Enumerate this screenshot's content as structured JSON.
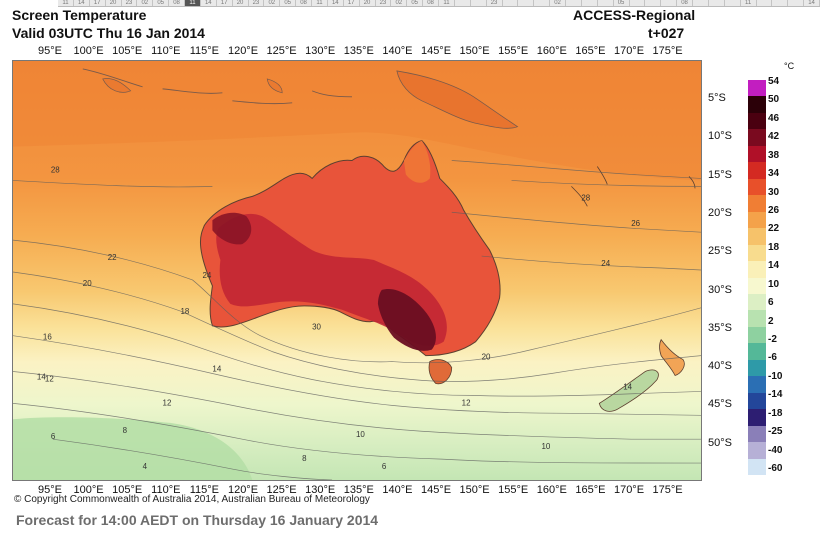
{
  "header": {
    "title": "Screen Temperature",
    "valid": "Valid 03UTC Thu 16 Jan 2014",
    "model": "ACCESS-Regional",
    "step": "t+027"
  },
  "time_strip": {
    "cells": [
      "11",
      "14",
      "17",
      "20",
      "23",
      "02",
      "05",
      "08",
      "11",
      "14",
      "17",
      "20",
      "23",
      "02",
      "05",
      "08",
      "11",
      "14",
      "17",
      "20",
      "23",
      "02",
      "05",
      "08",
      "11",
      "",
      "",
      "23",
      "",
      "",
      "",
      "02",
      "",
      "",
      "",
      "05",
      "",
      "",
      "",
      "08",
      "",
      "",
      "",
      "11",
      "",
      "",
      "",
      "14"
    ],
    "active_index": 8
  },
  "axes": {
    "longitudes": [
      "95°E",
      "100°E",
      "105°E",
      "110°E",
      "115°E",
      "120°E",
      "125°E",
      "130°E",
      "135°E",
      "140°E",
      "145°E",
      "150°E",
      "155°E",
      "160°E",
      "165°E",
      "170°E",
      "175°E"
    ],
    "latitudes": [
      "5°S",
      "10°S",
      "15°S",
      "20°S",
      "25°S",
      "30°S",
      "35°S",
      "40°S",
      "45°S",
      "50°S"
    ]
  },
  "contour_labels": [
    "28",
    "28",
    "26",
    "24",
    "24",
    "22",
    "20",
    "18",
    "16",
    "14",
    "14",
    "12",
    "12",
    "10",
    "10",
    "8",
    "8",
    "6",
    "6",
    "4",
    "30",
    "20",
    "14",
    "12"
  ],
  "colorbar": {
    "unit": "°C",
    "labels": [
      "54",
      "50",
      "46",
      "42",
      "38",
      "34",
      "30",
      "26",
      "22",
      "18",
      "14",
      "10",
      "6",
      "2",
      "-2",
      "-6",
      "-10",
      "-14",
      "-18",
      "-25",
      "-40",
      "-60"
    ],
    "colors": [
      "#c21ec0",
      "#2b0008",
      "#4a0010",
      "#7a0a1f",
      "#b01028",
      "#d42a22",
      "#e8502a",
      "#f07e34",
      "#f4a24a",
      "#f6c26a",
      "#f8dc8e",
      "#faf0b8",
      "#f7f8cf",
      "#dcefc4",
      "#b8e2b0",
      "#8ed1a0",
      "#54b898",
      "#2e9aa8",
      "#2b6fb4",
      "#23469a",
      "#2d1e72",
      "#8a7fb8",
      "#b6b0d6",
      "#d2e4f4"
    ]
  },
  "copyright": "© Copyright Commonwealth of Australia 2014, Australian Bureau of Meteorology",
  "footer": "Forecast for 14:00 AEDT on Thursday 16 January 2014"
}
